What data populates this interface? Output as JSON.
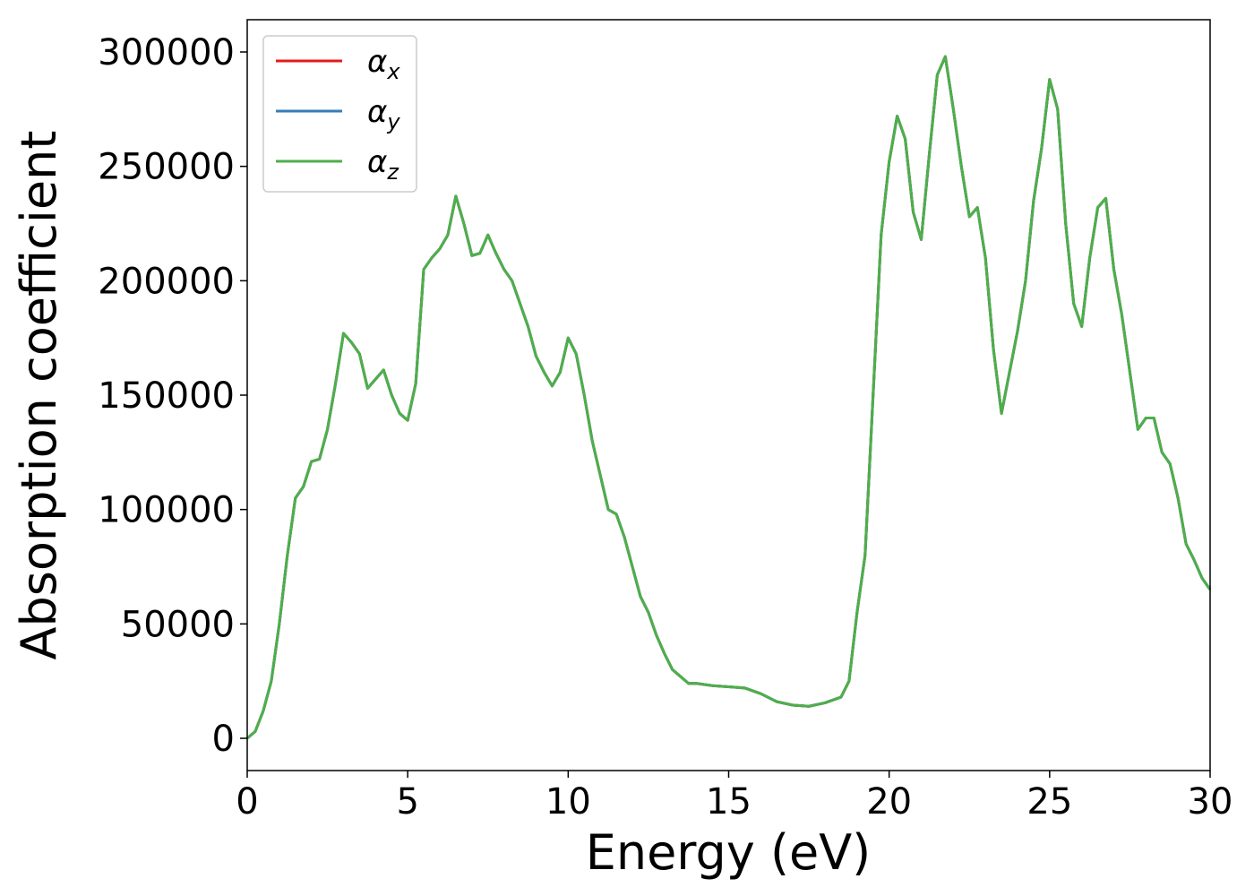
{
  "chart_data": {
    "type": "line",
    "x_label": "Energy (eV)",
    "y_label": "Absorption coefficient",
    "x": [
      0,
      0.25,
      0.5,
      0.75,
      1.0,
      1.25,
      1.5,
      1.75,
      2.0,
      2.25,
      2.5,
      2.75,
      3.0,
      3.25,
      3.5,
      3.75,
      4.0,
      4.25,
      4.5,
      4.75,
      5.0,
      5.25,
      5.5,
      5.75,
      6.0,
      6.25,
      6.5,
      6.75,
      7.0,
      7.25,
      7.5,
      7.75,
      8.0,
      8.25,
      8.5,
      8.75,
      9.0,
      9.25,
      9.5,
      9.75,
      10.0,
      10.25,
      10.5,
      10.75,
      11.0,
      11.25,
      11.5,
      11.75,
      12.0,
      12.25,
      12.5,
      12.75,
      13.0,
      13.25,
      13.5,
      13.75,
      14.0,
      14.5,
      15.0,
      15.5,
      16.0,
      16.5,
      17.0,
      17.5,
      18.0,
      18.5,
      18.75,
      19.0,
      19.25,
      19.5,
      19.75,
      20.0,
      20.25,
      20.5,
      20.75,
      21.0,
      21.25,
      21.5,
      21.75,
      22.0,
      22.25,
      22.5,
      22.75,
      23.0,
      23.25,
      23.5,
      23.75,
      24.0,
      24.25,
      24.5,
      24.75,
      25.0,
      25.25,
      25.5,
      25.75,
      26.0,
      26.25,
      26.5,
      26.75,
      27.0,
      27.25,
      27.5,
      27.75,
      28.0,
      28.25,
      28.5,
      28.75,
      29.0,
      29.25,
      29.5,
      29.75,
      30.0
    ],
    "series": [
      {
        "name": "αx",
        "color": "#e41a1c",
        "values": [
          0,
          3000,
          12000,
          25000,
          50000,
          80000,
          105000,
          110000,
          121000,
          122000,
          135000,
          155000,
          177000,
          173000,
          168000,
          153000,
          157000,
          161000,
          150000,
          142000,
          139000,
          155000,
          205000,
          210000,
          214000,
          220000,
          237000,
          225000,
          211000,
          212000,
          220000,
          212000,
          205000,
          200000,
          190000,
          180000,
          167000,
          160000,
          154000,
          160000,
          175000,
          168000,
          150000,
          130000,
          115000,
          100000,
          98000,
          88000,
          75000,
          62000,
          55000,
          45000,
          37000,
          30000,
          27000,
          24000,
          24000,
          23000,
          22500,
          22000,
          19500,
          16000,
          14500,
          14000,
          15500,
          18000,
          25000,
          55000,
          80000,
          150000,
          220000,
          252000,
          272000,
          262000,
          230000,
          218000,
          255000,
          290000,
          298000,
          275000,
          250000,
          228000,
          232000,
          210000,
          170000,
          142000,
          160000,
          178000,
          200000,
          235000,
          258000,
          288000,
          275000,
          225000,
          190000,
          180000,
          210000,
          232000,
          236000,
          205000,
          185000,
          160000,
          135000,
          140000,
          140000,
          125000,
          120000,
          105000,
          85000,
          78000,
          70000,
          65000
        ]
      },
      {
        "name": "αy",
        "color": "#377eb8",
        "values": [
          0,
          3000,
          12000,
          25000,
          50000,
          80000,
          105000,
          110000,
          121000,
          122000,
          135000,
          155000,
          177000,
          173000,
          168000,
          153000,
          157000,
          161000,
          150000,
          142000,
          139000,
          155000,
          205000,
          210000,
          214000,
          220000,
          237000,
          225000,
          211000,
          212000,
          220000,
          212000,
          205000,
          200000,
          190000,
          180000,
          167000,
          160000,
          154000,
          160000,
          175000,
          168000,
          150000,
          130000,
          115000,
          100000,
          98000,
          88000,
          75000,
          62000,
          55000,
          45000,
          37000,
          30000,
          27000,
          24000,
          24000,
          23000,
          22500,
          22000,
          19500,
          16000,
          14500,
          14000,
          15500,
          18000,
          25000,
          55000,
          80000,
          150000,
          220000,
          252000,
          272000,
          262000,
          230000,
          218000,
          255000,
          290000,
          298000,
          275000,
          250000,
          228000,
          232000,
          210000,
          170000,
          142000,
          160000,
          178000,
          200000,
          235000,
          258000,
          288000,
          275000,
          225000,
          190000,
          180000,
          210000,
          232000,
          236000,
          205000,
          185000,
          160000,
          135000,
          140000,
          140000,
          125000,
          120000,
          105000,
          85000,
          78000,
          70000,
          65000
        ]
      },
      {
        "name": "αz",
        "color": "#4daf4a",
        "values": [
          0,
          3000,
          12000,
          25000,
          50000,
          80000,
          105000,
          110000,
          121000,
          122000,
          135000,
          155000,
          177000,
          173000,
          168000,
          153000,
          157000,
          161000,
          150000,
          142000,
          139000,
          155000,
          205000,
          210000,
          214000,
          220000,
          237000,
          225000,
          211000,
          212000,
          220000,
          212000,
          205000,
          200000,
          190000,
          180000,
          167000,
          160000,
          154000,
          160000,
          175000,
          168000,
          150000,
          130000,
          115000,
          100000,
          98000,
          88000,
          75000,
          62000,
          55000,
          45000,
          37000,
          30000,
          27000,
          24000,
          24000,
          23000,
          22500,
          22000,
          19500,
          16000,
          14500,
          14000,
          15500,
          18000,
          25000,
          55000,
          80000,
          150000,
          220000,
          252000,
          272000,
          262000,
          230000,
          218000,
          255000,
          290000,
          298000,
          275000,
          250000,
          228000,
          232000,
          210000,
          170000,
          142000,
          160000,
          178000,
          200000,
          235000,
          258000,
          288000,
          275000,
          225000,
          190000,
          180000,
          210000,
          232000,
          236000,
          205000,
          185000,
          160000,
          135000,
          140000,
          140000,
          125000,
          120000,
          105000,
          85000,
          78000,
          70000,
          65000
        ]
      }
    ],
    "xlim": [
      0,
      30
    ],
    "xticks": [
      0,
      5,
      10,
      15,
      20,
      25,
      30
    ],
    "ylim": [
      -14100,
      314100
    ],
    "yticks": [
      0,
      50000,
      100000,
      150000,
      200000,
      250000,
      300000
    ],
    "legend": "upper left",
    "grid": false
  }
}
